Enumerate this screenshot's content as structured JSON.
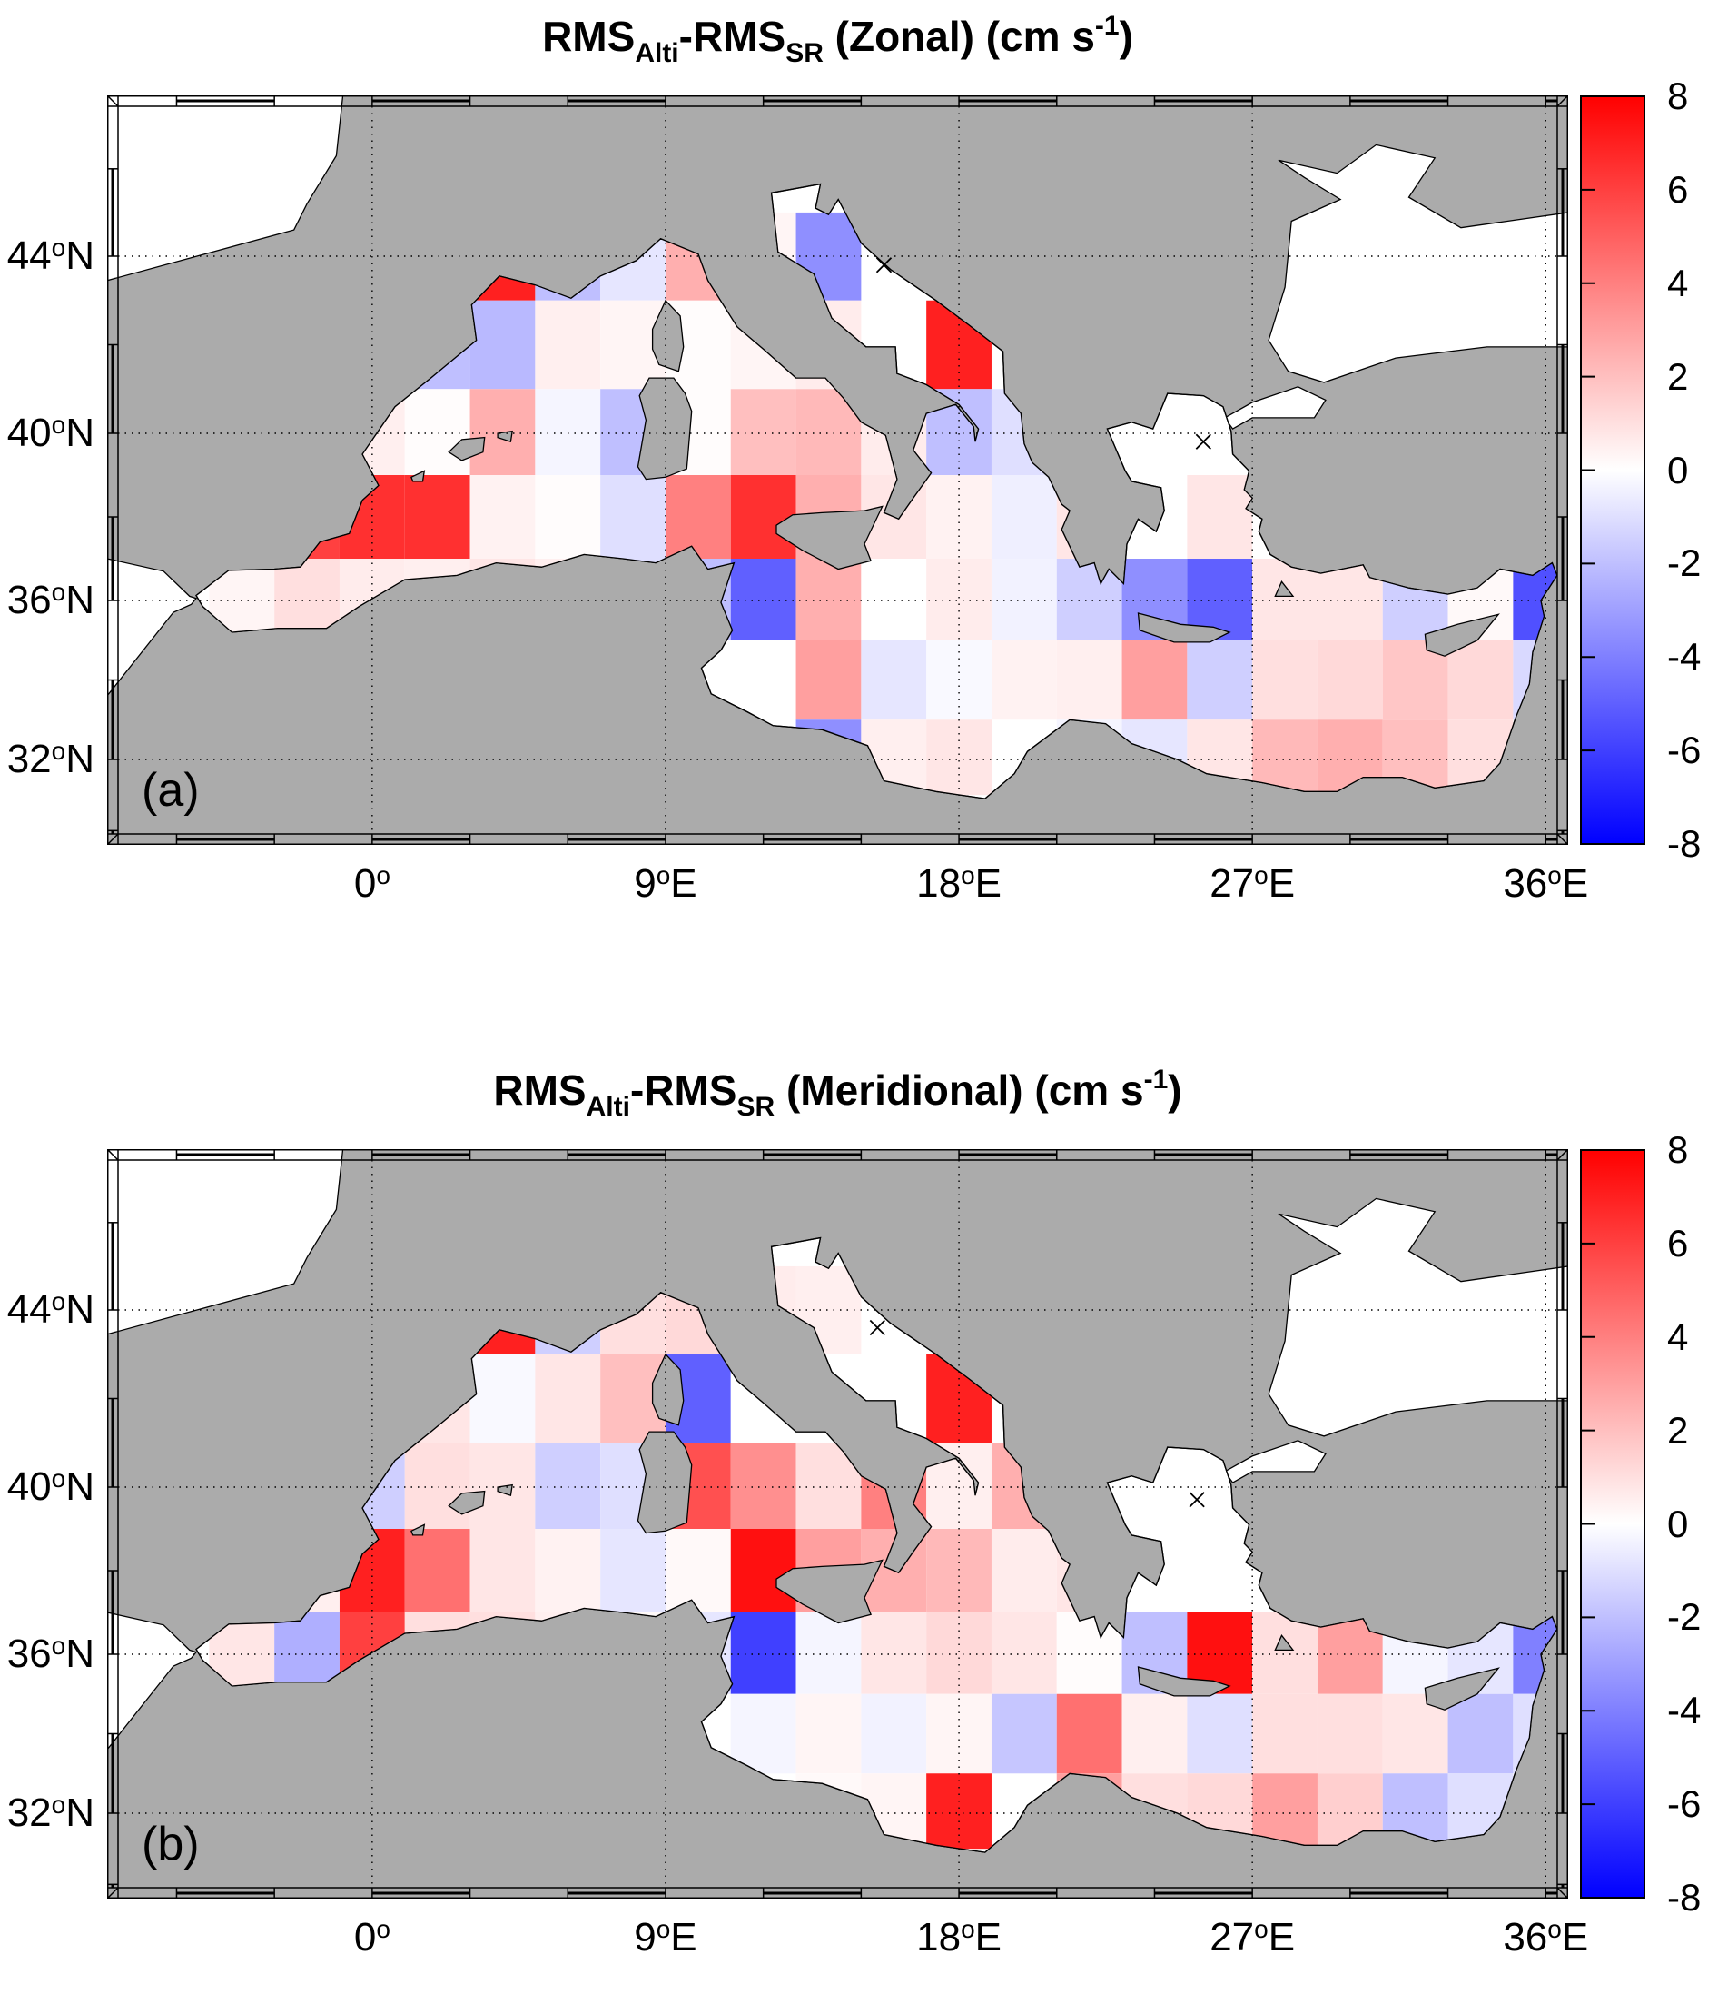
{
  "chart_data": {
    "type": "heatmap",
    "description": "Two-panel map figure: RMS difference (altimetry minus surface radar) of zonal and meridional velocities over the Mediterranean Sea, 2x2 degree bins, diverging blue-white-red colormap",
    "colorbar": {
      "vmin": -8,
      "vmax": 8,
      "ticks": [
        8,
        6,
        4,
        2,
        0,
        -2,
        -4,
        -6,
        -8
      ],
      "pos_color": "#ff0000",
      "zero_color": "#ffffff",
      "neg_color": "#0000ff"
    },
    "axes": {
      "x_ticks": [
        {
          "num": "0",
          "suffix": "",
          "lon": 0
        },
        {
          "num": "9",
          "suffix": "E",
          "lon": 9
        },
        {
          "num": "18",
          "suffix": "E",
          "lon": 18
        },
        {
          "num": "27",
          "suffix": "E",
          "lon": 27
        },
        {
          "num": "36",
          "suffix": "E",
          "lon": 36
        }
      ],
      "y_ticks": [
        {
          "num": "44",
          "suffix": "N",
          "lat": 44
        },
        {
          "num": "40",
          "suffix": "N",
          "lat": 40
        },
        {
          "num": "36",
          "suffix": "N",
          "lat": 36
        },
        {
          "num": "32",
          "suffix": "N",
          "lat": 32
        }
      ],
      "grid_lons": [
        0,
        9,
        18,
        27,
        36
      ],
      "grid_lats": [
        44,
        40,
        36,
        32
      ]
    },
    "colors": {
      "land": "#ababab",
      "sea_nodata": "#ffffff",
      "coast": "#000000"
    },
    "panels": [
      {
        "id": "a",
        "panel_letter": "(a)",
        "title_parts": [
          {
            "t": "RMS"
          },
          {
            "t": "Alti",
            "sub": true
          },
          {
            "t": "-RMS"
          },
          {
            "t": "SR",
            "sub": true
          },
          {
            "t": " (Zonal) (cm  s"
          },
          {
            "t": "-1",
            "sup": true
          },
          {
            "t": ")"
          }
        ],
        "markers_lonlat": [
          [
            15.7,
            43.8
          ],
          [
            25.5,
            39.8
          ]
        ],
        "cells": [
          [
            44,
            4,
            7
          ],
          [
            44,
            6,
            -2
          ],
          [
            44,
            8,
            -0.8
          ],
          [
            44,
            10,
            2.5
          ],
          [
            44,
            12,
            0.3
          ],
          [
            44,
            14,
            -3.5
          ],
          [
            42,
            2,
            -2
          ],
          [
            42,
            4,
            -2.2
          ],
          [
            42,
            6,
            0.5
          ],
          [
            42,
            8,
            0.3
          ],
          [
            42,
            10,
            0.1
          ],
          [
            42,
            12,
            0.3
          ],
          [
            42,
            14,
            0.6
          ],
          [
            42,
            18,
            7
          ],
          [
            40,
            0,
            0.5
          ],
          [
            40,
            2,
            0.1
          ],
          [
            40,
            4,
            2.5
          ],
          [
            40,
            6,
            -0.3
          ],
          [
            40,
            8,
            -2
          ],
          [
            40,
            10,
            0.1
          ],
          [
            40,
            12,
            2
          ],
          [
            40,
            14,
            2.2
          ],
          [
            40,
            16,
            0.6
          ],
          [
            40,
            18,
            -2
          ],
          [
            40,
            20,
            -1
          ],
          [
            38,
            -2,
            6
          ],
          [
            38,
            0,
            6.5
          ],
          [
            38,
            2,
            6.5
          ],
          [
            38,
            4,
            0.4
          ],
          [
            38,
            6,
            0.1
          ],
          [
            38,
            8,
            -1
          ],
          [
            38,
            10,
            4
          ],
          [
            38,
            12,
            6.5
          ],
          [
            38,
            14,
            2.5
          ],
          [
            38,
            16,
            0.8
          ],
          [
            38,
            18,
            0.4
          ],
          [
            38,
            20,
            -0.5
          ],
          [
            38,
            22,
            0.8
          ],
          [
            38,
            26,
            0.8
          ],
          [
            36,
            -4,
            0.3
          ],
          [
            36,
            -2,
            1
          ],
          [
            36,
            0,
            0.6
          ],
          [
            36,
            2,
            0.5
          ],
          [
            36,
            4,
            0.8
          ],
          [
            36,
            6,
            0.5
          ],
          [
            36,
            8,
            -1
          ],
          [
            36,
            10,
            -2
          ],
          [
            36,
            12,
            -5
          ],
          [
            36,
            14,
            2.5
          ],
          [
            36,
            16,
            0
          ],
          [
            36,
            18,
            0.6
          ],
          [
            36,
            20,
            -0.4
          ],
          [
            36,
            22,
            -1.5
          ],
          [
            36,
            24,
            -3.5
          ],
          [
            36,
            26,
            -5
          ],
          [
            36,
            28,
            0.8
          ],
          [
            36,
            30,
            0.8
          ],
          [
            36,
            32,
            -1.5
          ],
          [
            36,
            34,
            0.2
          ],
          [
            36,
            36,
            -5.5
          ],
          [
            34,
            14,
            3
          ],
          [
            34,
            16,
            -0.8
          ],
          [
            34,
            18,
            -0.2
          ],
          [
            34,
            20,
            0.4
          ],
          [
            34,
            22,
            0.5
          ],
          [
            34,
            24,
            3
          ],
          [
            34,
            26,
            -1.5
          ],
          [
            34,
            28,
            1
          ],
          [
            34,
            30,
            1.2
          ],
          [
            34,
            32,
            1.8
          ],
          [
            34,
            34,
            1.2
          ],
          [
            34,
            36,
            -1.2
          ],
          [
            32,
            14,
            -3.5
          ],
          [
            32,
            16,
            0.5
          ],
          [
            32,
            18,
            0.8
          ],
          [
            32,
            22,
            -0.3
          ],
          [
            32,
            24,
            -0.8
          ],
          [
            32,
            26,
            0.8
          ],
          [
            32,
            28,
            2.2
          ],
          [
            32,
            30,
            2.5
          ],
          [
            32,
            32,
            2
          ],
          [
            32,
            34,
            1
          ]
        ]
      },
      {
        "id": "b",
        "panel_letter": "(b)",
        "title_parts": [
          {
            "t": "RMS"
          },
          {
            "t": "Alti",
            "sub": true
          },
          {
            "t": "-RMS"
          },
          {
            "t": "SR",
            "sub": true
          },
          {
            "t": " (Meridional) (cm  s"
          },
          {
            "t": "-1",
            "sup": true
          },
          {
            "t": ")"
          }
        ],
        "markers_lonlat": [
          [
            15.5,
            43.6
          ],
          [
            25.3,
            39.7
          ]
        ],
        "cells": [
          [
            44,
            4,
            7
          ],
          [
            44,
            6,
            -1.5
          ],
          [
            44,
            8,
            1
          ],
          [
            44,
            10,
            1.2
          ],
          [
            44,
            12,
            0.6
          ],
          [
            44,
            14,
            0.5
          ],
          [
            42,
            0,
            0.3
          ],
          [
            42,
            2,
            0.8
          ],
          [
            42,
            4,
            -0.2
          ],
          [
            42,
            6,
            0.8
          ],
          [
            42,
            8,
            2
          ],
          [
            42,
            10,
            -5
          ],
          [
            42,
            12,
            0
          ],
          [
            42,
            18,
            7
          ],
          [
            40,
            0,
            -1.5
          ],
          [
            40,
            2,
            1
          ],
          [
            40,
            4,
            0.8
          ],
          [
            40,
            6,
            -1.5
          ],
          [
            40,
            8,
            -1
          ],
          [
            40,
            10,
            5.5
          ],
          [
            40,
            12,
            3.5
          ],
          [
            40,
            14,
            1
          ],
          [
            40,
            16,
            4
          ],
          [
            40,
            18,
            0.5
          ],
          [
            40,
            20,
            2.5
          ],
          [
            38,
            -2,
            0.5
          ],
          [
            38,
            0,
            7
          ],
          [
            38,
            2,
            4.5
          ],
          [
            38,
            4,
            0.8
          ],
          [
            38,
            6,
            0.4
          ],
          [
            38,
            8,
            -0.8
          ],
          [
            38,
            10,
            0.2
          ],
          [
            38,
            12,
            7.5
          ],
          [
            38,
            14,
            3
          ],
          [
            38,
            16,
            2.5
          ],
          [
            38,
            18,
            2.2
          ],
          [
            38,
            20,
            0.6
          ],
          [
            38,
            22,
            0.8
          ],
          [
            36,
            -4,
            0.8
          ],
          [
            36,
            -2,
            -2.5
          ],
          [
            36,
            0,
            6
          ],
          [
            36,
            2,
            1
          ],
          [
            36,
            4,
            1
          ],
          [
            36,
            6,
            0.5
          ],
          [
            36,
            8,
            0.2
          ],
          [
            36,
            10,
            -0.8
          ],
          [
            36,
            12,
            -6
          ],
          [
            36,
            14,
            -0.3
          ],
          [
            36,
            16,
            0.8
          ],
          [
            36,
            18,
            1.2
          ],
          [
            36,
            20,
            0.8
          ],
          [
            36,
            22,
            0.1
          ],
          [
            36,
            24,
            -2
          ],
          [
            36,
            26,
            7.5
          ],
          [
            36,
            28,
            1
          ],
          [
            36,
            30,
            3
          ],
          [
            36,
            32,
            -0.3
          ],
          [
            36,
            34,
            -0.8
          ],
          [
            36,
            36,
            -4
          ],
          [
            34,
            12,
            -0.3
          ],
          [
            34,
            14,
            0.3
          ],
          [
            34,
            16,
            -0.4
          ],
          [
            34,
            18,
            0.3
          ],
          [
            34,
            20,
            -1.8
          ],
          [
            34,
            22,
            4.5
          ],
          [
            34,
            24,
            0.5
          ],
          [
            34,
            26,
            -1
          ],
          [
            34,
            28,
            1
          ],
          [
            34,
            30,
            1
          ],
          [
            34,
            32,
            0.8
          ],
          [
            34,
            34,
            -2
          ],
          [
            34,
            36,
            -1
          ],
          [
            32,
            14,
            0.2
          ],
          [
            32,
            16,
            0.3
          ],
          [
            32,
            18,
            7
          ],
          [
            32,
            22,
            3
          ],
          [
            32,
            24,
            1
          ],
          [
            32,
            26,
            1.2
          ],
          [
            32,
            28,
            3
          ],
          [
            32,
            30,
            1.5
          ],
          [
            32,
            32,
            -2
          ],
          [
            32,
            34,
            -1
          ]
        ]
      }
    ]
  }
}
